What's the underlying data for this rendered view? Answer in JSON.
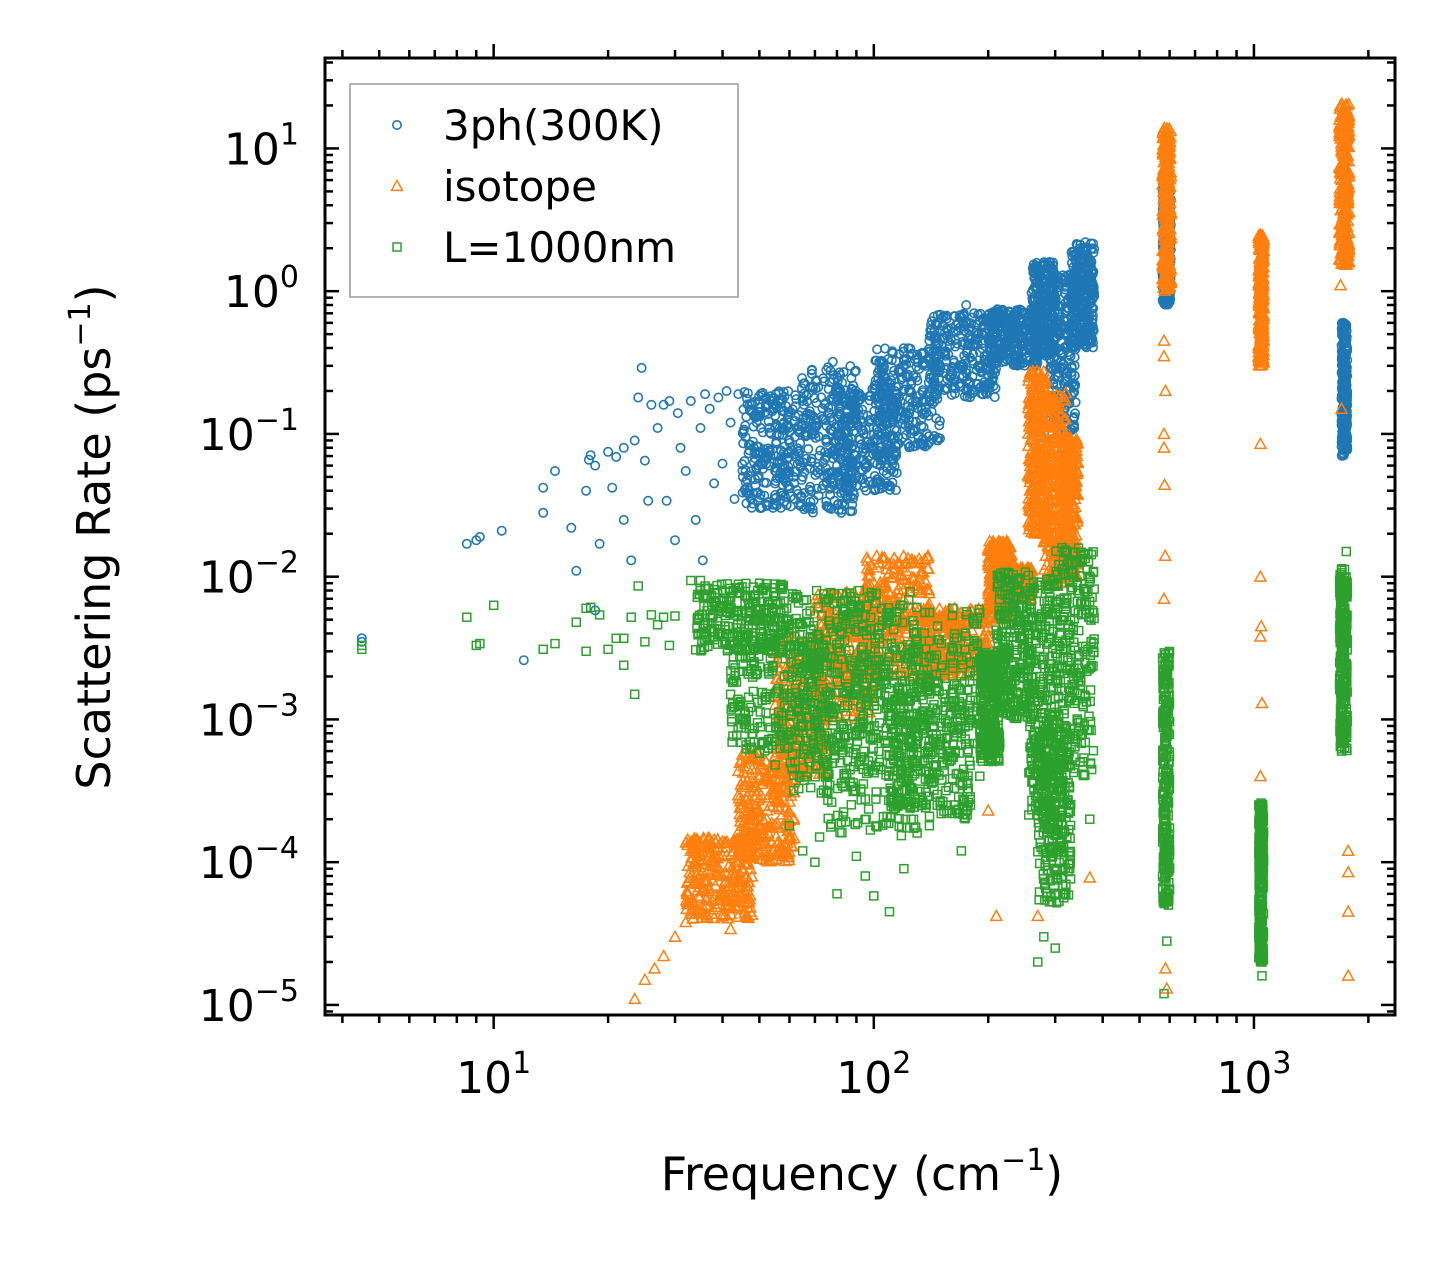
{
  "chart_data": {
    "type": "scatter",
    "xscale": "log",
    "yscale": "log",
    "xlim": [
      3.6,
      2350
    ],
    "ylim": [
      8.5e-06,
      43
    ],
    "xlabel": "Frequency (cm",
    "xlabel_sup": "−1",
    "xlabel_end": ")",
    "ylabel": "Scattering Rate (ps",
    "ylabel_sup": "−1",
    "ylabel_end": ")",
    "x_ticks": [
      {
        "value": 10,
        "base": "10",
        "exp": "1"
      },
      {
        "value": 100,
        "base": "10",
        "exp": "2"
      },
      {
        "value": 1000,
        "base": "10",
        "exp": "3"
      }
    ],
    "y_ticks": [
      {
        "value": 10,
        "base": "10",
        "exp": "1"
      },
      {
        "value": 1,
        "base": "10",
        "exp": "0"
      },
      {
        "value": 0.1,
        "base": "10",
        "exp": "−1"
      },
      {
        "value": 0.01,
        "base": "10",
        "exp": "−2"
      },
      {
        "value": 0.001,
        "base": "10",
        "exp": "−3"
      },
      {
        "value": 0.0001,
        "base": "10",
        "exp": "−4"
      },
      {
        "value": 1e-05,
        "base": "10",
        "exp": "−5"
      }
    ],
    "legend_position": "top-left",
    "series": [
      {
        "name": "3ph(300K)",
        "marker": "circle",
        "color": "#1f77b4",
        "points": [
          [
            4.5,
            0.0037
          ],
          [
            4.5,
            0.0035
          ],
          [
            8.5,
            0.017
          ],
          [
            9.0,
            0.018
          ],
          [
            9.2,
            0.019
          ],
          [
            10.5,
            0.021
          ],
          [
            12.0,
            0.0026
          ],
          [
            13.5,
            0.042
          ],
          [
            13.5,
            0.028
          ],
          [
            14.5,
            0.055
          ],
          [
            16.0,
            0.022
          ],
          [
            16.5,
            0.011
          ],
          [
            17.5,
            0.04
          ],
          [
            17.8,
            0.066
          ],
          [
            18.0,
            0.071
          ],
          [
            18.5,
            0.06
          ],
          [
            18.5,
            0.0058
          ],
          [
            19.0,
            0.017
          ],
          [
            20.0,
            0.075
          ],
          [
            20.5,
            0.042
          ],
          [
            21.0,
            0.069
          ],
          [
            22.0,
            0.08
          ],
          [
            22.0,
            0.025
          ],
          [
            23.0,
            0.013
          ],
          [
            23.5,
            0.09
          ],
          [
            24.0,
            0.18
          ],
          [
            24.5,
            0.29
          ],
          [
            25.0,
            0.065
          ],
          [
            25.5,
            0.034
          ],
          [
            26.0,
            0.16
          ],
          [
            27.0,
            0.11
          ],
          [
            28.0,
            0.16
          ],
          [
            28.5,
            0.034
          ],
          [
            29.0,
            0.17
          ],
          [
            30.0,
            0.018
          ],
          [
            30.5,
            0.14
          ],
          [
            31.0,
            0.08
          ],
          [
            32.0,
            0.055
          ],
          [
            33.0,
            0.17
          ],
          [
            34.0,
            0.025
          ],
          [
            35.0,
            0.11
          ],
          [
            35.5,
            0.013
          ],
          [
            36.0,
            0.19
          ],
          [
            37.0,
            0.15
          ],
          [
            38.0,
            0.045
          ],
          [
            39.0,
            0.18
          ],
          [
            40.0,
            0.062
          ],
          [
            41.0,
            0.2
          ],
          [
            42.0,
            0.12
          ],
          [
            43.0,
            0.035
          ],
          [
            44.0,
            0.19
          ],
          [
            46.0,
            0.095
          ],
          [
            48.0,
            0.14
          ],
          [
            50.0,
            0.075
          ],
          [
            52.0,
            0.16
          ],
          [
            55.0,
            0.055
          ],
          [
            58.0,
            0.12
          ],
          [
            60.0,
            0.09
          ],
          [
            65.0,
            0.05
          ],
          [
            68.0,
            0.03
          ],
          [
            70.0,
            0.1
          ],
          [
            75.0,
            0.28
          ],
          [
            78.0,
            0.32
          ],
          [
            80.0,
            0.06
          ],
          [
            85.0,
            0.035
          ],
          [
            90.0,
            0.12
          ],
          [
            100.0,
            0.08
          ],
          [
            110.0,
            0.2
          ],
          [
            120.0,
            0.3
          ],
          [
            140.0,
            0.45
          ],
          [
            160.0,
            0.55
          ],
          [
            175.0,
            0.8
          ],
          [
            190.0,
            0.3
          ],
          [
            210.0,
            0.5
          ],
          [
            230.0,
            0.65
          ],
          [
            250.0,
            0.55
          ],
          [
            270.0,
            0.9
          ],
          [
            290.0,
            1.6
          ],
          [
            320.0,
            1.2
          ],
          [
            360.0,
            2.2
          ],
          [
            375.0,
            0.6
          ],
          [
            590.0,
            5.0
          ],
          [
            590.0,
            1.0
          ],
          [
            600.0,
            3.0
          ],
          [
            1720.0,
            0.6
          ],
          [
            1720.0,
            0.08
          ],
          [
            1750.0,
            0.2
          ]
        ],
        "clusters": [
          [
            45,
            64,
            0.03,
            0.2
          ],
          [
            64,
            90,
            0.028,
            0.3
          ],
          [
            80,
            115,
            0.04,
            0.22
          ],
          [
            100,
            150,
            0.08,
            0.4
          ],
          [
            140,
            210,
            0.18,
            0.7
          ],
          [
            200,
            270,
            0.3,
            0.75
          ],
          [
            260,
            300,
            0.35,
            1.6
          ],
          [
            290,
            340,
            0.1,
            1.3
          ],
          [
            330,
            380,
            0.4,
            2.2
          ],
          [
            575,
            605,
            0.8,
            5.5
          ],
          [
            1700,
            1760,
            0.07,
            0.6
          ]
        ]
      },
      {
        "name": "isotope",
        "marker": "triangle",
        "color": "#ff7f0e",
        "points": [
          [
            23.5,
            1.1e-05
          ],
          [
            25.0,
            1.5e-05
          ],
          [
            26.5,
            1.8e-05
          ],
          [
            28.0,
            2.2e-05
          ],
          [
            30.0,
            3e-05
          ],
          [
            32.0,
            3.8e-05
          ],
          [
            34.0,
            5e-05
          ],
          [
            36.0,
            6.5e-05
          ],
          [
            38.0,
            8.5e-05
          ],
          [
            40.0,
            0.00011
          ],
          [
            42.0,
            3.4e-05
          ],
          [
            45.0,
            0.00018
          ],
          [
            48.0,
            0.00023
          ],
          [
            50.0,
            0.00028
          ],
          [
            53.0,
            0.00037
          ],
          [
            55.0,
            0.00048
          ],
          [
            58.0,
            0.0006
          ],
          [
            210.0,
            4.2e-05
          ],
          [
            270.0,
            4.2e-05
          ],
          [
            370.0,
            7.8e-05
          ],
          [
            175.0,
            0.00025
          ],
          [
            200.0,
            0.00023
          ],
          [
            580.0,
            0.45
          ],
          [
            580.0,
            0.35
          ],
          [
            585.0,
            0.2
          ],
          [
            580.0,
            0.1
          ],
          [
            580.0,
            0.08
          ],
          [
            582.0,
            0.044
          ],
          [
            584.0,
            0.014
          ],
          [
            580.0,
            0.007
          ],
          [
            585.0,
            0.0002
          ],
          [
            585.0,
            1.8e-05
          ],
          [
            590.0,
            1.3e-05
          ],
          [
            1040.0,
            0.085
          ],
          [
            1040.0,
            0.01
          ],
          [
            1045.0,
            0.0045
          ],
          [
            1040.0,
            0.0038
          ],
          [
            1050.0,
            0.0013
          ],
          [
            1040.0,
            0.0004
          ],
          [
            1040.0,
            0.00015
          ],
          [
            1690.0,
            1.1
          ],
          [
            1700.0,
            0.15
          ],
          [
            1700.0,
            0.006
          ],
          [
            1770.0,
            0.00012
          ],
          [
            1770.0,
            8.5e-05
          ],
          [
            1770.0,
            4.5e-05
          ],
          [
            1770.0,
            1.6e-05
          ]
        ],
        "clusters": [
          [
            32,
            48,
            4e-05,
            0.00015
          ],
          [
            44,
            62,
            0.0001,
            0.0006
          ],
          [
            55,
            75,
            0.0004,
            0.004
          ],
          [
            70,
            100,
            0.001,
            0.008
          ],
          [
            95,
            140,
            0.002,
            0.014
          ],
          [
            135,
            200,
            0.002,
            0.006
          ],
          [
            200,
            230,
            0.005,
            0.018
          ],
          [
            225,
            260,
            0.007,
            0.012
          ],
          [
            255,
            285,
            0.02,
            0.28
          ],
          [
            280,
            320,
            0.009,
            0.2
          ],
          [
            310,
            345,
            0.01,
            0.1
          ],
          [
            575,
            605,
            1.0,
            14
          ],
          [
            1030,
            1060,
            0.3,
            2.5
          ],
          [
            1680,
            1780,
            1.5,
            21
          ]
        ]
      },
      {
        "name": "L=1000nm",
        "marker": "square",
        "color": "#2ca02c",
        "points": [
          [
            4.5,
            0.0033
          ],
          [
            4.5,
            0.0031
          ],
          [
            8.5,
            0.0052
          ],
          [
            9.0,
            0.0033
          ],
          [
            9.2,
            0.0034
          ],
          [
            10.0,
            0.0063
          ],
          [
            13.5,
            0.0031
          ],
          [
            14.5,
            0.0034
          ],
          [
            16.5,
            0.0048
          ],
          [
            17.5,
            0.003
          ],
          [
            17.5,
            0.006
          ],
          [
            18.0,
            0.0061
          ],
          [
            19.0,
            0.0054
          ],
          [
            20.0,
            0.0031
          ],
          [
            21.0,
            0.0037
          ],
          [
            22.0,
            0.0037
          ],
          [
            22.0,
            0.0024
          ],
          [
            23.0,
            0.0052
          ],
          [
            23.5,
            0.0015
          ],
          [
            24.0,
            0.0086
          ],
          [
            25.0,
            0.0035
          ],
          [
            26.0,
            0.0054
          ],
          [
            27.0,
            0.0046
          ],
          [
            28.0,
            0.0052
          ],
          [
            29.0,
            0.0033
          ],
          [
            30.0,
            0.0053
          ],
          [
            33.0,
            0.0094
          ],
          [
            35.0,
            0.0094
          ],
          [
            36.0,
            0.0086
          ],
          [
            40.0,
            0.008
          ],
          [
            42.0,
            0.0015
          ],
          [
            45.0,
            0.001
          ],
          [
            50.0,
            0.00058
          ],
          [
            55.0,
            0.00048
          ],
          [
            60.0,
            0.00018
          ],
          [
            65.0,
            0.00012
          ],
          [
            70.0,
            0.0001
          ],
          [
            72.0,
            0.00015
          ],
          [
            80.0,
            6e-05
          ],
          [
            90.0,
            0.00011
          ],
          [
            95.0,
            8e-05
          ],
          [
            100.0,
            5.8e-05
          ],
          [
            110.0,
            4.5e-05
          ],
          [
            120.0,
            9e-05
          ],
          [
            130.0,
            0.00016
          ],
          [
            140.0,
            0.00018
          ],
          [
            150.0,
            0.00025
          ],
          [
            170.0,
            0.00012
          ],
          [
            190.0,
            0.0004
          ],
          [
            270.0,
            2e-05
          ],
          [
            280.0,
            3e-05
          ],
          [
            300.0,
            2.5e-05
          ],
          [
            320.0,
            6e-05
          ],
          [
            370.0,
            0.0002
          ],
          [
            580.0,
            1.2e-05
          ],
          [
            590.0,
            2.8e-05
          ],
          [
            1050.0,
            1.6e-05
          ],
          [
            1050.0,
            2e-05
          ],
          [
            1050.0,
            2.5e-05
          ],
          [
            1700.0,
            0.0006
          ],
          [
            1750.0,
            0.015
          ]
        ],
        "clusters": [
          [
            34,
            60,
            0.003,
            0.009
          ],
          [
            42,
            75,
            0.0006,
            0.004
          ],
          [
            60,
            100,
            0.0003,
            0.008
          ],
          [
            75,
            130,
            0.00015,
            0.008
          ],
          [
            100,
            190,
            0.0004,
            0.006
          ],
          [
            110,
            180,
            0.0002,
            0.002
          ],
          [
            190,
            215,
            0.0005,
            0.003
          ],
          [
            210,
            260,
            0.001,
            0.011
          ],
          [
            255,
            300,
            0.0002,
            0.01
          ],
          [
            270,
            330,
            5e-05,
            0.0009
          ],
          [
            300,
            380,
            0.0004,
            0.016
          ],
          [
            575,
            600,
            5e-05,
            0.003
          ],
          [
            1030,
            1060,
            2e-05,
            0.00026
          ],
          [
            1680,
            1760,
            0.0006,
            0.012
          ]
        ]
      }
    ]
  }
}
